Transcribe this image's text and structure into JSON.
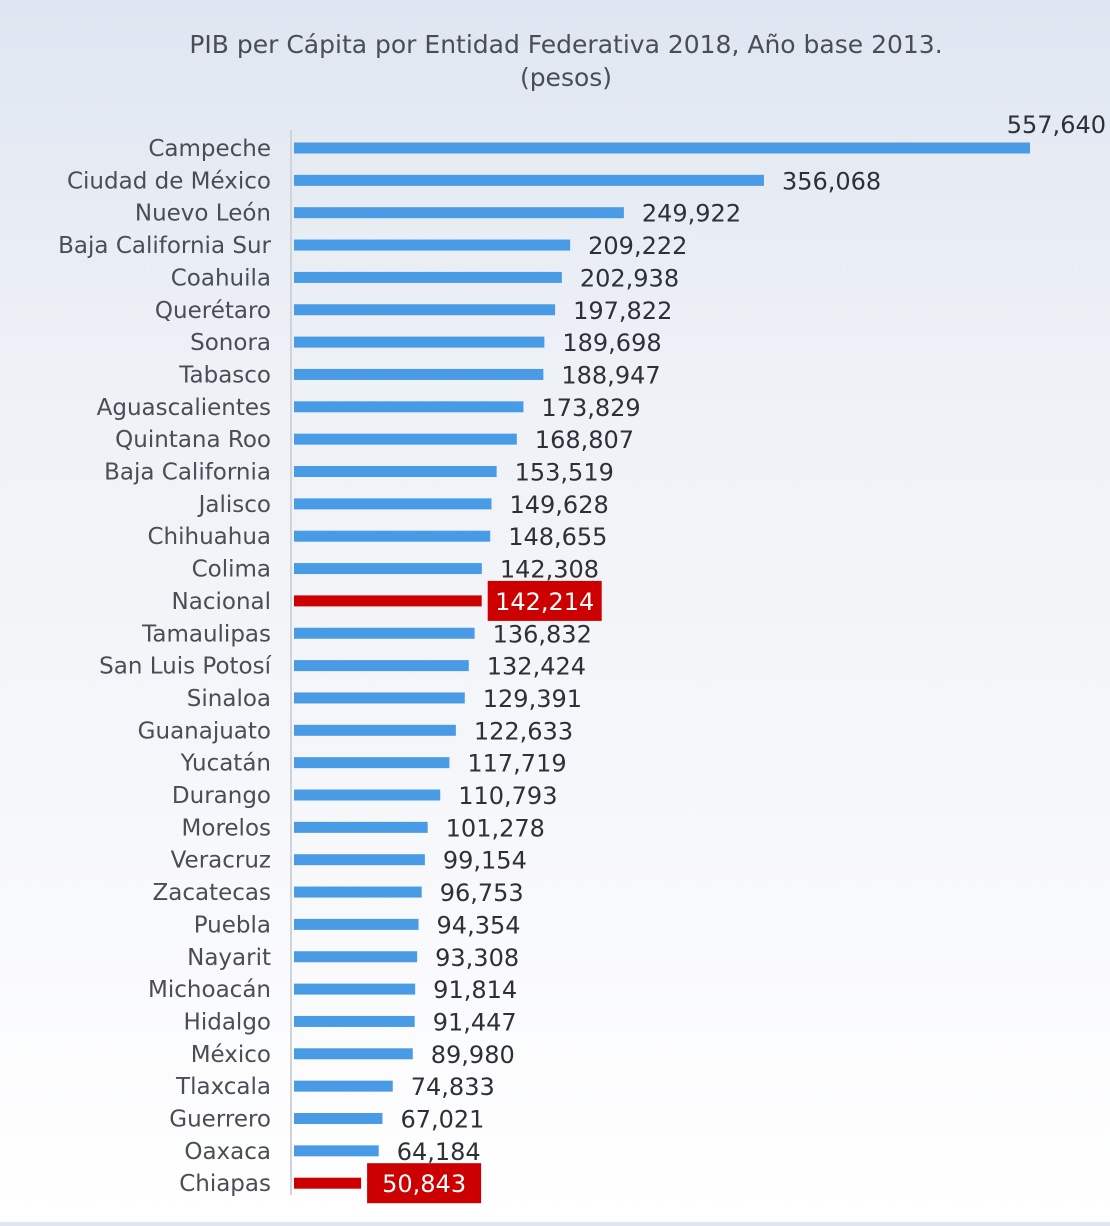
{
  "chart_data": {
    "type": "bar",
    "orientation": "horizontal",
    "title": "PIB per Cápita por Entidad Federativa 2018, Año base 2013.",
    "subtitle": "(pesos)",
    "xlim": [
      0,
      557640
    ],
    "colors": {
      "bar": "#4a9be6",
      "highlight": "#cc0000",
      "axis": "#d0d4da"
    },
    "categories": [
      "Campeche",
      "Ciudad de México",
      "Nuevo León",
      "Baja California Sur",
      "Coahuila",
      "Querétaro",
      "Sonora",
      "Tabasco",
      "Aguascalientes",
      "Quintana Roo",
      "Baja California",
      "Jalisco",
      "Chihuahua",
      "Colima",
      "Nacional",
      "Tamaulipas",
      "San Luis Potosí",
      "Sinaloa",
      "Guanajuato",
      "Yucatán",
      "Durango",
      "Morelos",
      "Veracruz",
      "Zacatecas",
      "Puebla",
      "Nayarit",
      "Michoacán",
      "Hidalgo",
      "México",
      "Tlaxcala",
      "Guerrero",
      "Oaxaca",
      "Chiapas"
    ],
    "values": [
      557640,
      356068,
      249922,
      209222,
      202938,
      197822,
      189698,
      188947,
      173829,
      168807,
      153519,
      149628,
      148655,
      142308,
      142214,
      136832,
      132424,
      129391,
      122633,
      117719,
      110793,
      101278,
      99154,
      96753,
      94354,
      93308,
      91814,
      91447,
      89980,
      74833,
      67021,
      64184,
      50843
    ],
    "value_labels": [
      "557,640",
      "356,068",
      "249,922",
      "209,222",
      "202,938",
      "197,822",
      "189,698",
      "188,947",
      "173,829",
      "168,807",
      "153,519",
      "149,628",
      "148,655",
      "142,308",
      "142,214",
      "136,832",
      "132,424",
      "129,391",
      "122,633",
      "117,719",
      "110,793",
      "101,278",
      "99,154",
      "96,753",
      "94,354",
      "93,308",
      "91,814",
      "91,447",
      "89,980",
      "74,833",
      "67,021",
      "64,184",
      "50,843"
    ],
    "highlight": [
      "Nacional",
      "Chiapas"
    ]
  }
}
